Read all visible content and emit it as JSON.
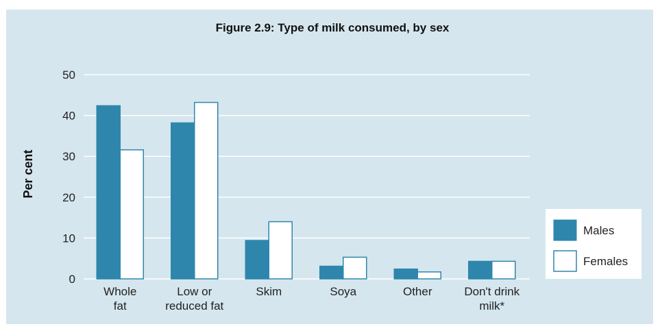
{
  "chart_data": {
    "type": "bar",
    "title": "Figure 2.9: Type of milk consumed, by sex",
    "ylabel": "Per cent",
    "xlabel": "",
    "ylim": [
      0,
      50
    ],
    "yticks": [
      0,
      10,
      20,
      30,
      40,
      50
    ],
    "grid": true,
    "legend_position": "right",
    "categories": [
      [
        "Whole",
        "fat"
      ],
      [
        "Low or",
        "reduced fat"
      ],
      [
        "Skim"
      ],
      [
        "Soya"
      ],
      [
        "Other"
      ],
      [
        "Don't drink",
        "milk*"
      ]
    ],
    "series": [
      {
        "name": "Males",
        "color": "#2e86ac",
        "values": [
          42.4,
          38.2,
          9.4,
          3.1,
          2.4,
          4.3
        ]
      },
      {
        "name": "Females",
        "color": "#ffffff",
        "values": [
          31.6,
          43.2,
          14.0,
          5.3,
          1.7,
          4.3
        ]
      }
    ]
  },
  "colors": {
    "background": "#d5e6ee",
    "grid": "#ffffff",
    "bar_stroke": "#2e86ac"
  }
}
